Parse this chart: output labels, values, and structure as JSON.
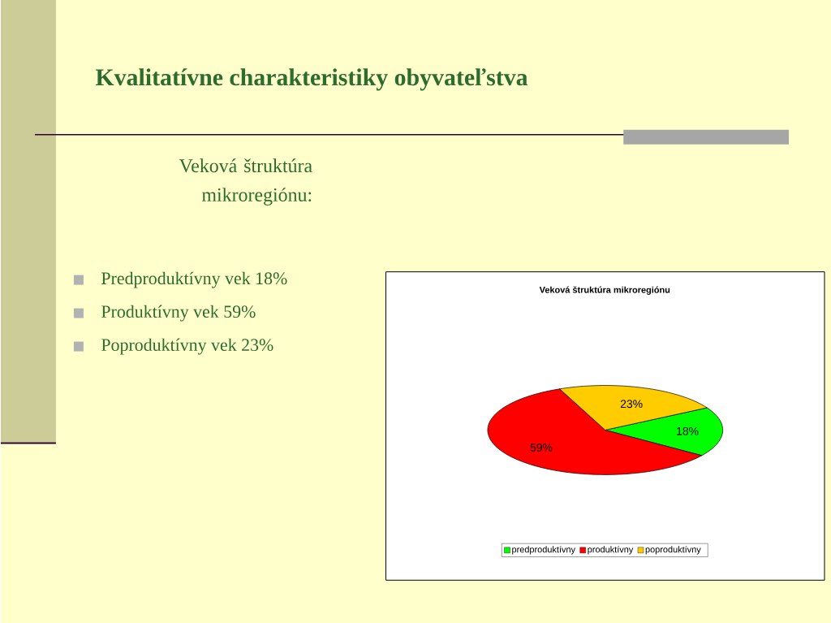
{
  "chart_data": {
    "type": "pie",
    "title": "Kvalitatívne charakteristiky obyvateľstva",
    "subtitle": "Veková štruktúra mikroregiónu:",
    "annotations": [
      "Predproduktívny vek  18%",
      "Produktívny vek       59%",
      "Poproduktívny vek    23%",
      "Veková štruktúra mikroregiónu"
    ],
    "categories": [
      "predproduktívny",
      "produktívny",
      "poproduktívny"
    ],
    "values": [
      18,
      59,
      23
    ],
    "colors": [
      "#00ff00",
      "#ff0000",
      "#ffcc00"
    ],
    "value_labels": [
      "18%",
      "59%",
      "23%"
    ],
    "legend": "bottom"
  }
}
